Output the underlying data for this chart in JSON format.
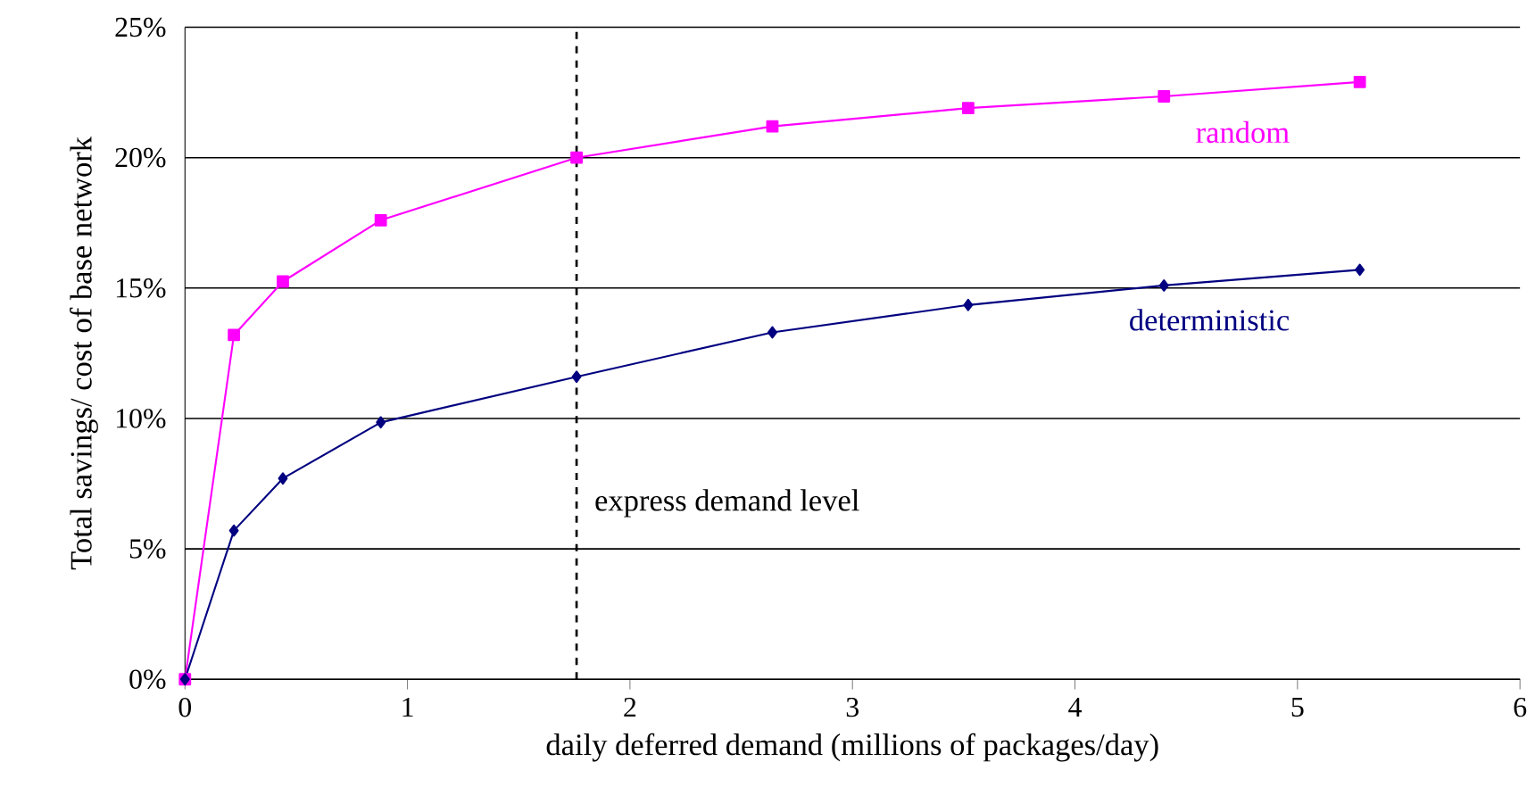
{
  "chart_data": {
    "type": "line",
    "xlabel": "daily deferred demand (millions of packages/day)",
    "ylabel": "Total savings/ cost of base network",
    "x": [
      0,
      0.22,
      0.44,
      0.88,
      1.76,
      2.64,
      3.52,
      4.4,
      5.28
    ],
    "series": [
      {
        "name": "random",
        "color": "#ff00ff",
        "marker": "square",
        "values": [
          0,
          13.2,
          15.25,
          17.6,
          20.0,
          21.2,
          21.9,
          22.35,
          22.9
        ]
      },
      {
        "name": "deterministic",
        "color": "#000080",
        "marker": "diamond",
        "values": [
          0,
          5.7,
          7.7,
          9.85,
          11.6,
          13.3,
          14.35,
          15.1,
          15.7
        ]
      }
    ],
    "xlim": [
      0,
      6
    ],
    "xticks": [
      0,
      1,
      2,
      3,
      4,
      5,
      6
    ],
    "ylim": [
      0,
      25
    ],
    "yticks": [
      {
        "value": 0,
        "label": "0%"
      },
      {
        "value": 5,
        "label": "5%"
      },
      {
        "value": 10,
        "label": "10%"
      },
      {
        "value": 15,
        "label": "15%"
      },
      {
        "value": 20,
        "label": "20%"
      },
      {
        "value": 25,
        "label": "25%"
      }
    ],
    "grid": "y",
    "legend": false,
    "line_style": "solid",
    "ref_lines": [
      {
        "axis": "x",
        "value": 1.76,
        "label": "express demand level",
        "color": "#000000",
        "line_style": "dashed"
      }
    ]
  }
}
